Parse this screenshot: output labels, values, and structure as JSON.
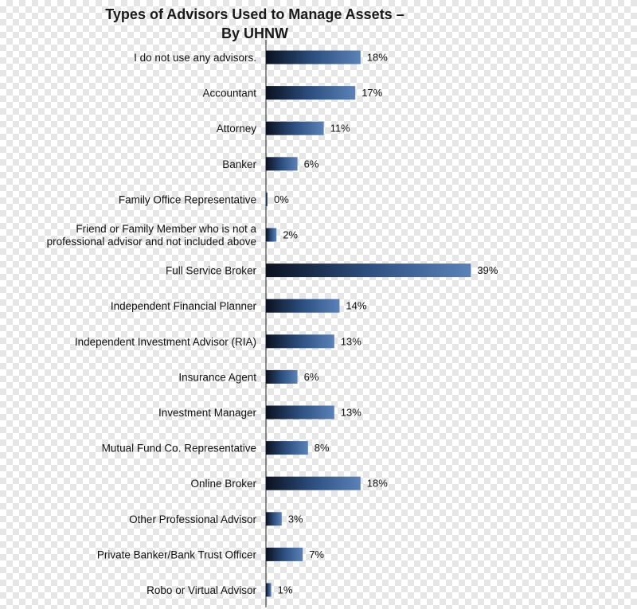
{
  "chart_data": {
    "type": "bar",
    "orientation": "horizontal",
    "title_lines": [
      "Types of Advisors Used to Manage Assets –",
      "By UHNW"
    ],
    "categories": [
      [
        "I do not use any advisors."
      ],
      [
        "Accountant"
      ],
      [
        "Attorney"
      ],
      [
        "Banker"
      ],
      [
        "Family Office Representative"
      ],
      [
        "Friend or Family Member who is not a",
        "professional advisor and not included above"
      ],
      [
        "Full Service Broker"
      ],
      [
        "Independent Financial Planner"
      ],
      [
        "Independent Investment Advisor (RIA)"
      ],
      [
        "Insurance Agent"
      ],
      [
        "Investment Manager"
      ],
      [
        "Mutual Fund Co. Representative"
      ],
      [
        "Online Broker"
      ],
      [
        "Other Professional Advisor"
      ],
      [
        "Private Banker/Bank Trust Officer"
      ],
      [
        "Robo or Virtual Advisor"
      ]
    ],
    "values": [
      18,
      17,
      11,
      6,
      0,
      2,
      39,
      14,
      13,
      6,
      13,
      8,
      18,
      3,
      7,
      1
    ],
    "value_labels": [
      "18%",
      "17%",
      "11%",
      "6%",
      "0%",
      "2%",
      "39%",
      "14%",
      "13%",
      "6%",
      "13%",
      "8%",
      "18%",
      "3%",
      "7%",
      "1%"
    ],
    "xlim": [
      0,
      40
    ],
    "grid": false,
    "legend": "none",
    "bar_gradient": [
      "#0b1220",
      "#2d4f80",
      "#5a82b8"
    ]
  }
}
